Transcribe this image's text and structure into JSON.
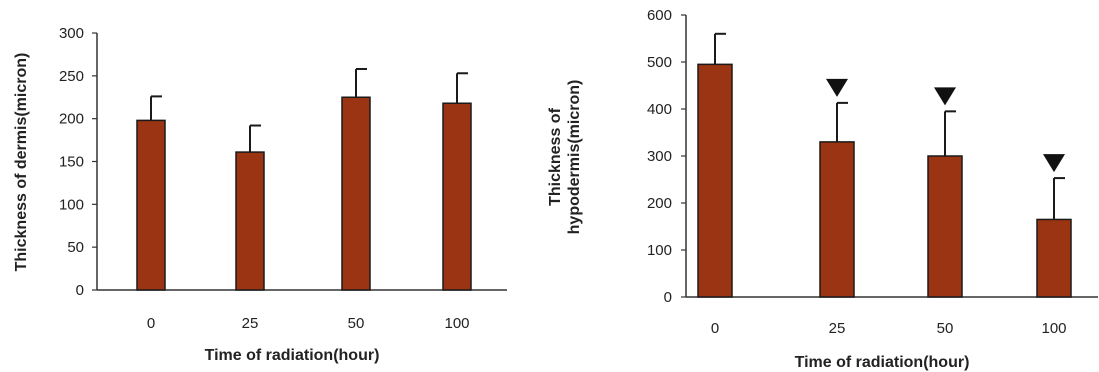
{
  "chart_data": [
    {
      "type": "bar",
      "categories": [
        "0",
        "25",
        "50",
        "100"
      ],
      "values": [
        198,
        161,
        225,
        218
      ],
      "error_upper": [
        226,
        192,
        258,
        253
      ],
      "xlabel": "Time of radiation(hour)",
      "ylabel": "Thickness of dermis(micron)",
      "ylim": [
        0,
        300
      ],
      "yticks": [
        "0",
        "50",
        "100",
        "150",
        "200",
        "250",
        "300"
      ],
      "significance_markers": [
        false,
        false,
        false,
        false
      ],
      "grid": false,
      "bar_color": "#9b3412"
    },
    {
      "type": "bar",
      "categories": [
        "0",
        "25",
        "50",
        "100"
      ],
      "values": [
        495,
        330,
        300,
        165
      ],
      "error_upper": [
        560,
        413,
        395,
        253
      ],
      "xlabel": "Time of radiation(hour)",
      "ylabel": [
        "Thickness of",
        "hypodermis(micron)"
      ],
      "ylim": [
        0,
        600
      ],
      "yticks": [
        "0",
        "100",
        "200",
        "300",
        "400",
        "500",
        "600"
      ],
      "significance_markers": [
        false,
        true,
        true,
        true
      ],
      "marker_symbol": "▼",
      "grid": false,
      "bar_color": "#9b3412"
    }
  ]
}
